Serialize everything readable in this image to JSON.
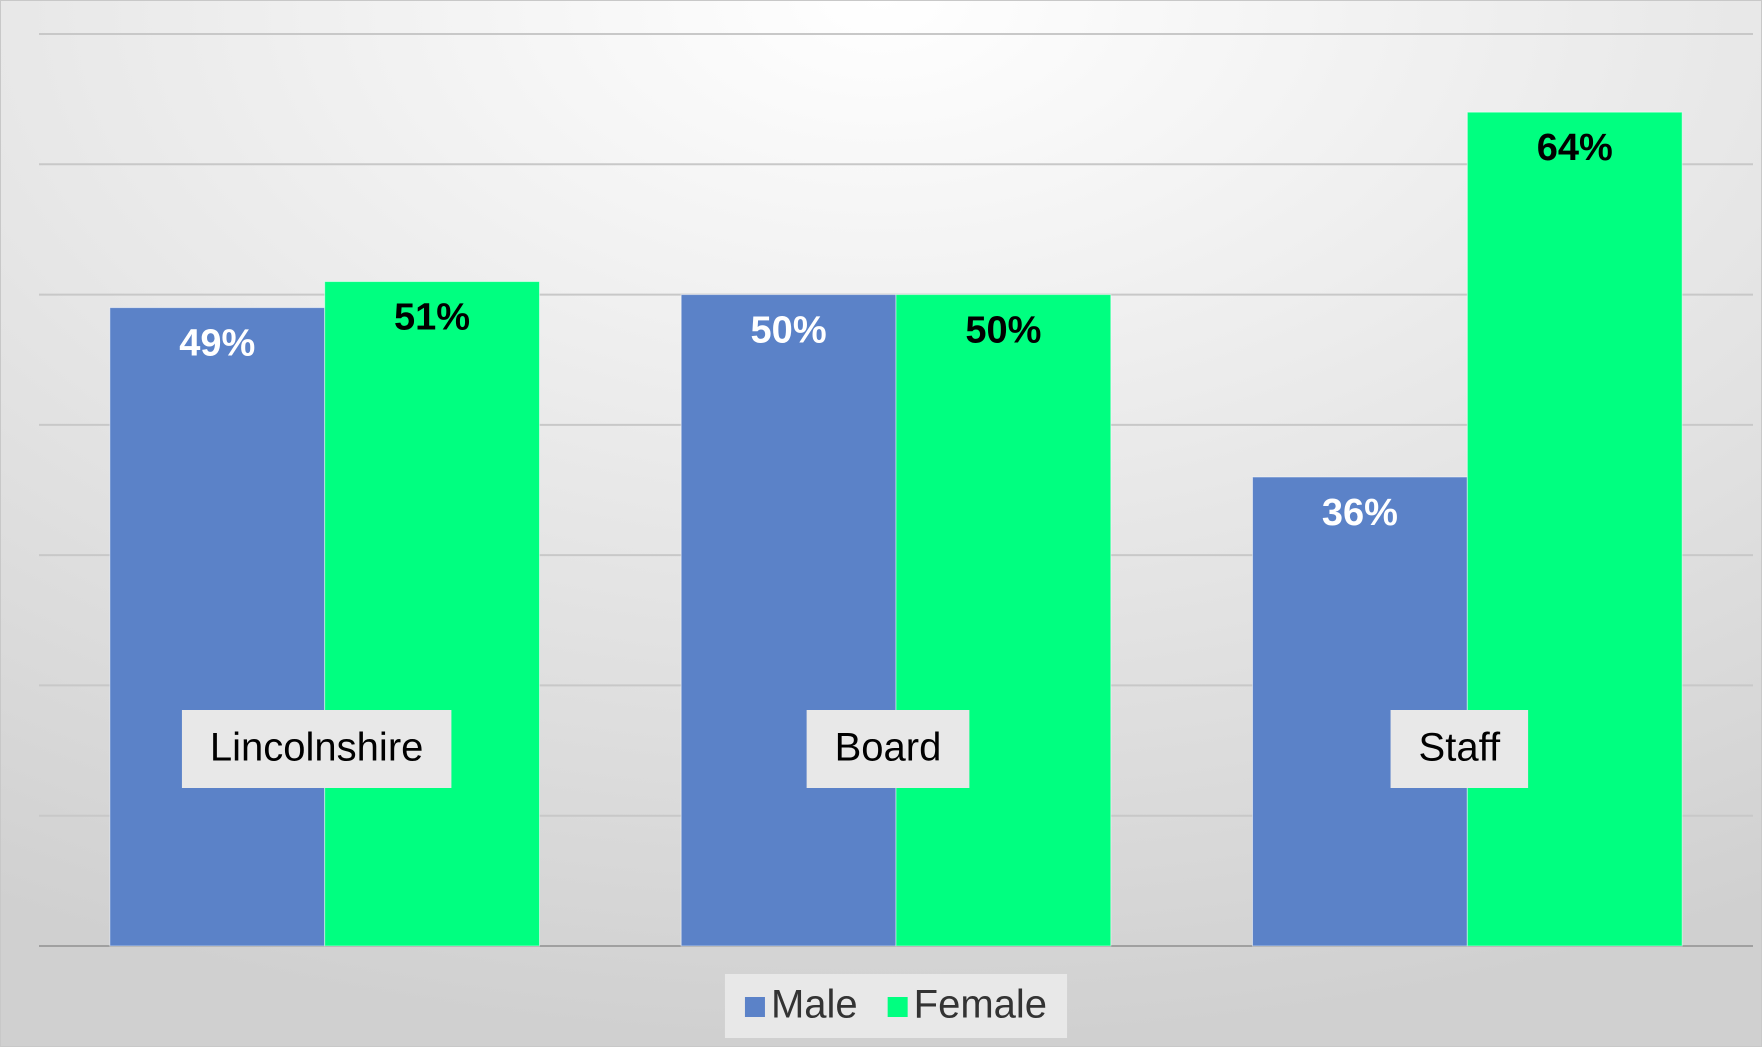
{
  "chart_data": {
    "type": "bar",
    "categories": [
      "Lincolnshire",
      "Board",
      "Staff"
    ],
    "series": [
      {
        "name": "Male",
        "color": "#5b82c8",
        "values": [
          49,
          50,
          36
        ],
        "value_labels": [
          "49%",
          "50%",
          "36%"
        ]
      },
      {
        "name": "Female",
        "color": "#00ff80",
        "values": [
          51,
          50,
          64
        ],
        "value_labels": [
          "51%",
          "50%",
          "64%"
        ]
      }
    ],
    "ylim": [
      0,
      70
    ],
    "yticks": [
      0,
      10,
      20,
      30,
      40,
      50,
      60,
      70
    ],
    "grid": true,
    "legend": "bottom"
  }
}
